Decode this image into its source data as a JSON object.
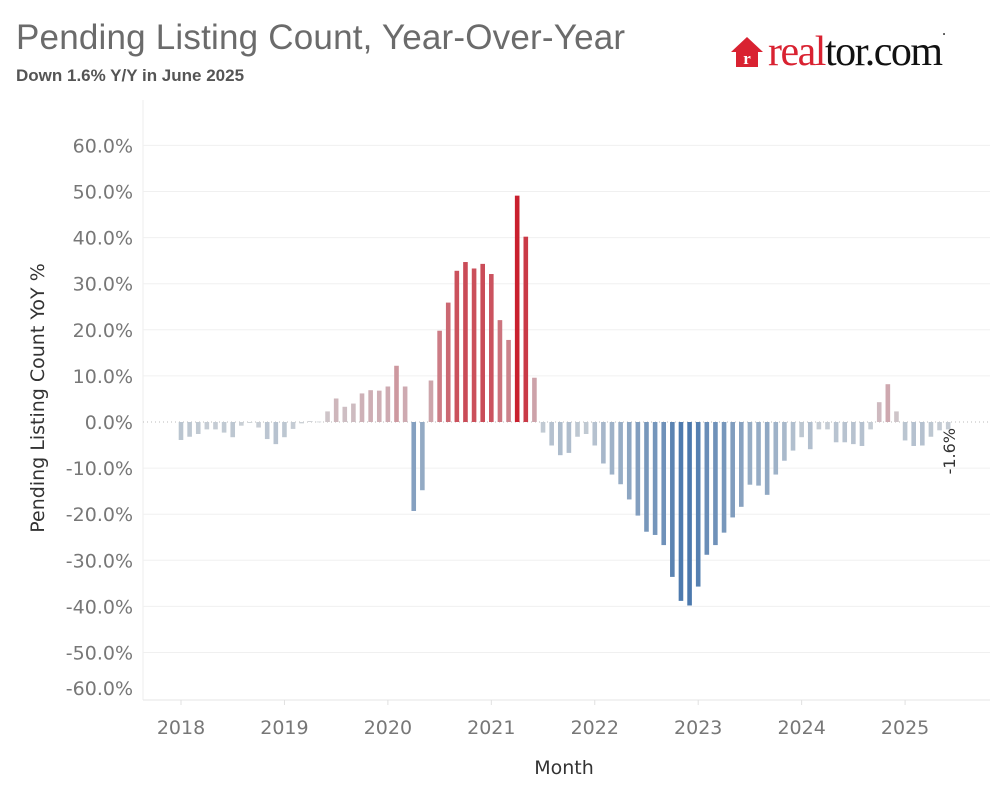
{
  "header": {
    "title": "Pending Listing Count, Year-Over-Year",
    "subtitle": "Down 1.6% Y/Y in June 2025",
    "logo": {
      "part1": "real",
      "part2": "tor.com",
      "house_letter": "r",
      "brand_red": "#d92231"
    }
  },
  "chart_data": {
    "type": "bar",
    "title": "Pending Listing Count, Year-Over-Year",
    "subtitle": "Down 1.6% Y/Y in June 2025",
    "xlabel": "Month",
    "ylabel": "Pending Listing Count YoY %",
    "ylim": [
      -60,
      60
    ],
    "yticks": [
      60,
      50,
      40,
      30,
      20,
      10,
      0,
      -10,
      -20,
      -30,
      -40,
      -50,
      -60
    ],
    "ytick_labels": [
      "60.0%",
      "50.0%",
      "40.0%",
      "30.0%",
      "20.0%",
      "10.0%",
      "0.0%",
      "-10.0%",
      "-20.0%",
      "-30.0%",
      "-40.0%",
      "-50.0%",
      "-60.0%"
    ],
    "xtick_labels": [
      "2018",
      "2019",
      "2020",
      "2021",
      "2022",
      "2023",
      "2024",
      "2025"
    ],
    "start_month": "2018-01",
    "end_month": "2025-06",
    "grid": true,
    "color_scale": {
      "negative": "#4a78ad",
      "neutral": "#cfd3d7",
      "positive": "#c9202e"
    },
    "annotation": {
      "month": "2025-06",
      "text": "-1.6%"
    },
    "values": [
      -3.9,
      -3.2,
      -2.6,
      -1.6,
      -1.6,
      -2.3,
      -3.3,
      -0.8,
      -0.2,
      -1.2,
      -3.7,
      -4.8,
      -3.3,
      -1.5,
      -0.3,
      0.2,
      0.1,
      2.3,
      5.1,
      3.3,
      4.0,
      6.2,
      6.9,
      6.8,
      7.7,
      12.2,
      7.7,
      -19.3,
      -14.8,
      9.0,
      19.8,
      25.9,
      32.8,
      34.7,
      33.3,
      34.3,
      32.1,
      22.1,
      17.8,
      49.1,
      40.2,
      9.6,
      -2.3,
      -5.1,
      -7.2,
      -6.7,
      -3.2,
      -2.6,
      -5.1,
      -9.0,
      -11.4,
      -13.5,
      -16.8,
      -20.3,
      -23.8,
      -24.5,
      -26.7,
      -33.6,
      -38.8,
      -39.8,
      -35.7,
      -28.8,
      -26.7,
      -24.0,
      -20.7,
      -18.4,
      -13.6,
      -13.8,
      -15.8,
      -11.4,
      -8.4,
      -6.2,
      -3.3,
      -5.9,
      -1.6,
      -1.6,
      -4.4,
      -4.4,
      -4.8,
      -5.2,
      -1.6,
      4.3,
      8.2,
      2.3,
      -4.0,
      -5.2,
      -5.1,
      -3.2,
      -1.8,
      -1.6
    ]
  }
}
